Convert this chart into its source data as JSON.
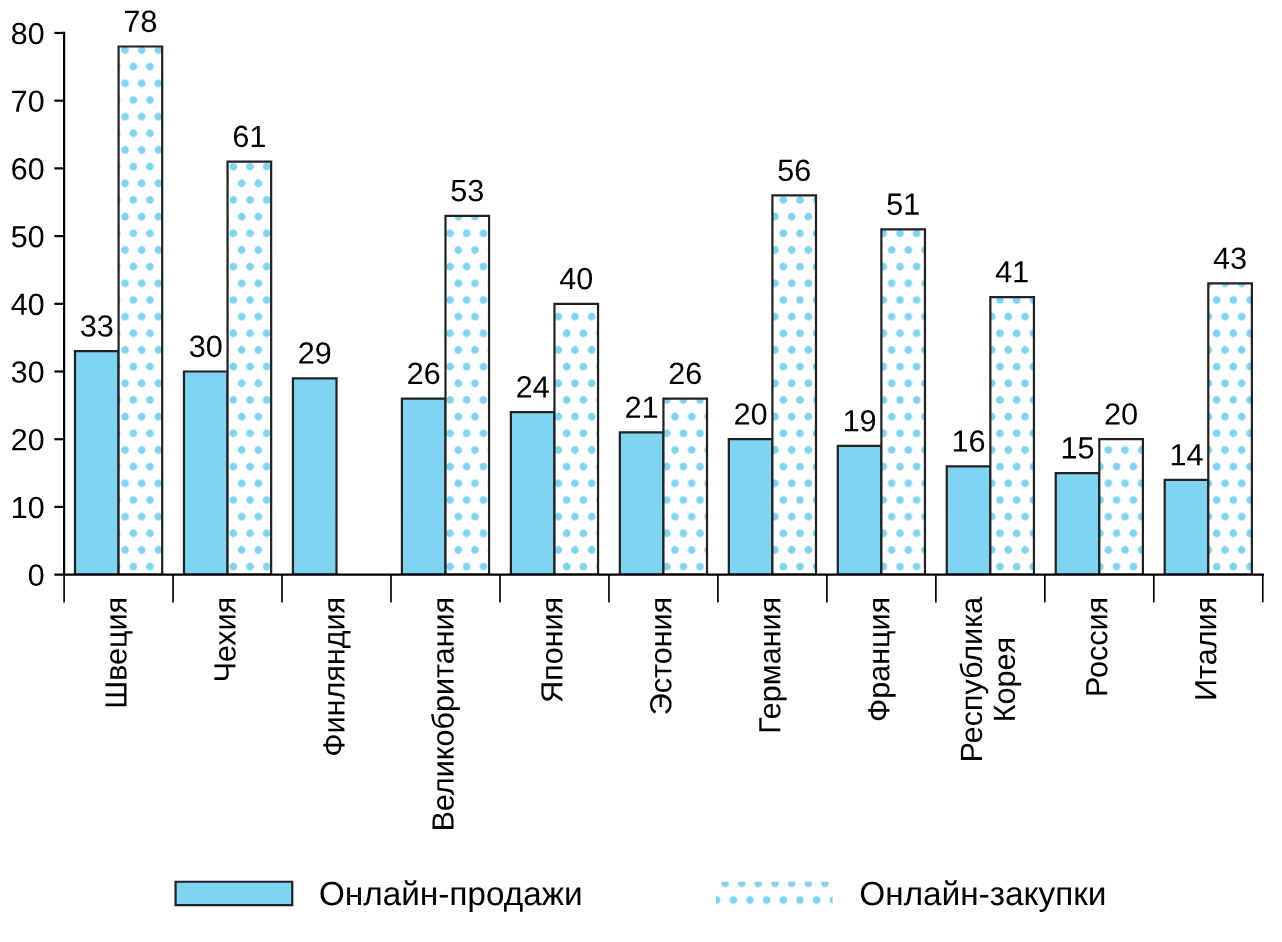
{
  "chart_data": {
    "type": "bar",
    "categories": [
      "Швеция",
      "Чехия",
      "Финляндия",
      "Великобритания",
      "Япония",
      "Эстония",
      "Германия",
      "Франция",
      "Республика\nКорея",
      "Россия",
      "Италия"
    ],
    "series": [
      {
        "name": "Онлайн-продажи",
        "color": "#7fd4f2",
        "values": [
          33,
          30,
          29,
          26,
          24,
          21,
          20,
          19,
          16,
          15,
          14
        ]
      },
      {
        "name": "Онлайн-закупки",
        "color": "#7fd4f2",
        "values": [
          78,
          61,
          null,
          53,
          40,
          26,
          56,
          51,
          41,
          20,
          43
        ]
      }
    ],
    "ylim": [
      0,
      80
    ],
    "yticks": [
      0,
      10,
      20,
      30,
      40,
      50,
      60,
      70,
      80
    ],
    "grid": false,
    "legend": "bottom",
    "data_labels": true
  }
}
